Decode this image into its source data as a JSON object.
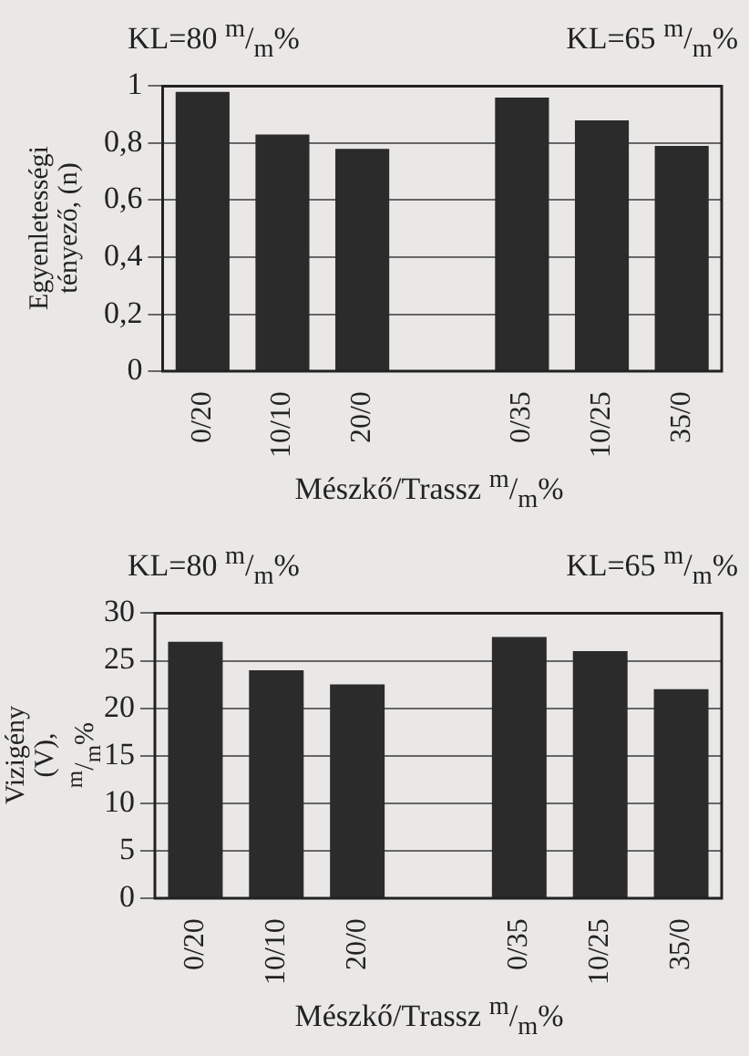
{
  "chart_data": [
    {
      "type": "bar",
      "categories": [
        "0/20",
        "10/10",
        "20/0",
        null,
        "0/35",
        "10/25",
        "35/0"
      ],
      "series": [
        {
          "color": "#2b2b2b",
          "values": [
            0.98,
            0.83,
            0.78,
            null,
            0.96,
            0.88,
            0.79
          ]
        }
      ],
      "ylim": [
        0,
        1
      ],
      "yticks": [
        0,
        {
          "value": 0.2,
          "label": "0,2"
        },
        {
          "value": 0.4,
          "label": "0,4"
        },
        {
          "value": 0.6,
          "label": "0,6"
        },
        {
          "value": 0.8,
          "label": "0,8"
        },
        1
      ],
      "ylabel": "Egyenletességi tényező, (n)",
      "xlabel": "Mészkő/Trassz $^{m}$/$_{m}$%",
      "annotations": [
        "KL=80 $^{m}$/$_{m}$%",
        "KL=65 $^{m}$/$_{m}$%"
      ],
      "grid": "y",
      "legend": false
    },
    {
      "type": "bar",
      "categories": [
        "0/20",
        "10/10",
        "20/0",
        null,
        "0/35",
        "10/25",
        "35/0"
      ],
      "series": [
        {
          "color": "#2b2b2b",
          "values": [
            27,
            24,
            22.5,
            null,
            27.5,
            26,
            22
          ]
        }
      ],
      "ylim": [
        0,
        30
      ],
      "yticks": [
        0,
        5,
        10,
        15,
        20,
        25,
        30
      ],
      "ylabel": "Vizigény (V), $^{m}$/$_{m}$%",
      "xlabel": "Mészkő/Trassz $^{m}$/$_{m}$%",
      "annotations": [
        "KL=80 $^{m}$/$_{m}$%",
        "KL=65 $^{m}$/$_{m}$%"
      ],
      "grid": "y",
      "legend": false
    }
  ]
}
